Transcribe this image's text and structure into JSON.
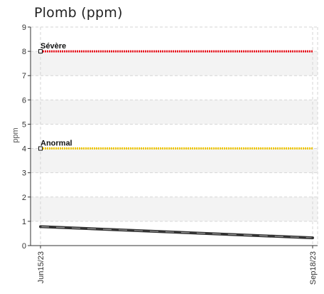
{
  "title": "Plomb (ppm)",
  "chart_data": {
    "type": "line",
    "title": "Plomb (ppm)",
    "xlabel": "",
    "ylabel": "ppm",
    "ylim": [
      0,
      9
    ],
    "yticks": [
      0,
      1,
      2,
      3,
      4,
      5,
      6,
      7,
      8,
      9
    ],
    "x": [
      "Jun15/23",
      "Sep18/23"
    ],
    "series": [
      {
        "values": [
          0.78,
          0.32
        ],
        "color": "#555555"
      }
    ],
    "thresholds": [
      {
        "label": "Sévère",
        "value": 8,
        "color": "#e8141e"
      },
      {
        "label": "Anormal",
        "value": 4,
        "color": "#f0c800"
      }
    ],
    "grid": true
  }
}
